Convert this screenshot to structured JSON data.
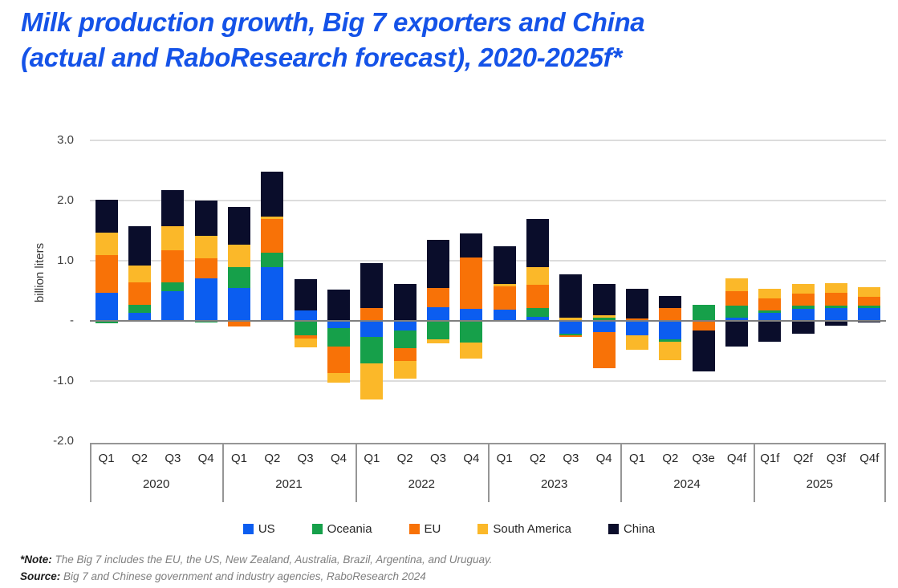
{
  "header": {
    "title_line1": "Milk production growth, Big 7 exporters and China",
    "title_line2": "(actual and RaboResearch forecast), 2020-2025f*",
    "title_color": "#1553E8"
  },
  "chart_data": {
    "type": "bar",
    "stacked": true,
    "title": "Milk production growth, Big 7 exporters and China (actual and RaboResearch forecast), 2020-2025f*",
    "xlabel": "",
    "ylabel": "billion liters",
    "ylim": [
      -2.0,
      3.0
    ],
    "grid": "horizontal",
    "legend_position": "bottom",
    "yticks": [
      {
        "value": 3.0,
        "label": "3.0"
      },
      {
        "value": 2.0,
        "label": "2.0"
      },
      {
        "value": 1.0,
        "label": "1.0"
      },
      {
        "value": 0.0,
        "label": "-"
      },
      {
        "value": -1.0,
        "label": "-1.0"
      },
      {
        "value": -2.0,
        "label": "-2.0"
      }
    ],
    "year_groups": [
      {
        "year": "2020",
        "quarters": [
          "Q1",
          "Q2",
          "Q3",
          "Q4"
        ]
      },
      {
        "year": "2021",
        "quarters": [
          "Q1",
          "Q2",
          "Q3",
          "Q4"
        ]
      },
      {
        "year": "2022",
        "quarters": [
          "Q1",
          "Q2",
          "Q3",
          "Q4"
        ]
      },
      {
        "year": "2023",
        "quarters": [
          "Q1",
          "Q2",
          "Q3",
          "Q4"
        ]
      },
      {
        "year": "2024",
        "quarters": [
          "Q1",
          "Q2",
          "Q3e",
          "Q4f"
        ]
      },
      {
        "year": "2025",
        "quarters": [
          "Q1f",
          "Q2f",
          "Q3f",
          "Q4f"
        ]
      }
    ],
    "categories": [
      "2020 Q1",
      "2020 Q2",
      "2020 Q3",
      "2020 Q4",
      "2021 Q1",
      "2021 Q2",
      "2021 Q3",
      "2021 Q4",
      "2022 Q1",
      "2022 Q2",
      "2022 Q3",
      "2022 Q4",
      "2023 Q1",
      "2023 Q2",
      "2023 Q3",
      "2023 Q4",
      "2024 Q1",
      "2024 Q2",
      "2024 Q3e",
      "2024 Q4f",
      "2025 Q1f",
      "2025 Q2f",
      "2025 Q3f",
      "2025 Q4f"
    ],
    "series": [
      {
        "name": "US",
        "color": "#0B5DF0",
        "values": [
          0.47,
          0.13,
          0.49,
          0.71,
          0.55,
          0.9,
          0.18,
          -0.12,
          -0.27,
          -0.16,
          0.23,
          0.2,
          0.19,
          0.07,
          -0.21,
          -0.19,
          -0.24,
          -0.3,
          0.0,
          0.05,
          0.14,
          0.2,
          0.22,
          0.22
        ]
      },
      {
        "name": "Oceania",
        "color": "#16A04A",
        "values": [
          -0.04,
          0.14,
          0.15,
          -0.02,
          0.35,
          0.23,
          -0.24,
          -0.3,
          -0.44,
          -0.29,
          -0.31,
          -0.36,
          0.0,
          0.15,
          -0.03,
          0.06,
          0.02,
          -0.04,
          0.27,
          0.21,
          0.04,
          0.06,
          0.04,
          0.04
        ]
      },
      {
        "name": "EU",
        "color": "#F87207",
        "values": [
          0.63,
          0.37,
          0.54,
          0.33,
          -0.09,
          0.56,
          -0.05,
          -0.45,
          0.21,
          -0.21,
          0.32,
          0.86,
          0.38,
          0.38,
          -0.03,
          -0.6,
          0.02,
          0.21,
          -0.16,
          0.24,
          0.2,
          0.19,
          0.21,
          0.14
        ]
      },
      {
        "name": "South America",
        "color": "#FBB829",
        "values": [
          0.37,
          0.28,
          0.4,
          0.37,
          0.37,
          0.04,
          -0.15,
          -0.16,
          -0.6,
          -0.3,
          -0.06,
          -0.27,
          0.05,
          0.3,
          0.05,
          0.03,
          -0.24,
          -0.31,
          0.0,
          0.21,
          0.16,
          0.17,
          0.16,
          0.16
        ]
      },
      {
        "name": "China",
        "color": "#0A0D2B",
        "values": [
          0.55,
          0.65,
          0.6,
          0.59,
          0.62,
          0.75,
          0.52,
          0.52,
          0.75,
          0.62,
          0.8,
          0.4,
          0.62,
          0.8,
          0.72,
          0.52,
          0.5,
          0.2,
          -0.68,
          -0.43,
          -0.35,
          -0.21,
          -0.08,
          -0.03
        ]
      }
    ]
  },
  "footnotes": {
    "note_prefix": "*Note:",
    "note_text": " The Big 7 includes the EU, the US, New Zealand, Australia, Brazil, Argentina, and Uruguay.",
    "source_prefix": "Source:",
    "source_text": " Big 7 and Chinese government and industry agencies, RaboResearch 2024"
  },
  "colors": {
    "title": "#1553E8",
    "gridline": "#DCDCDC",
    "zero_line": "#7F7F7F",
    "axis_box": "#969696",
    "tick_text": "#3F3F3F",
    "label_text": "#262626",
    "footnote_gray": "#7F7F7F"
  }
}
